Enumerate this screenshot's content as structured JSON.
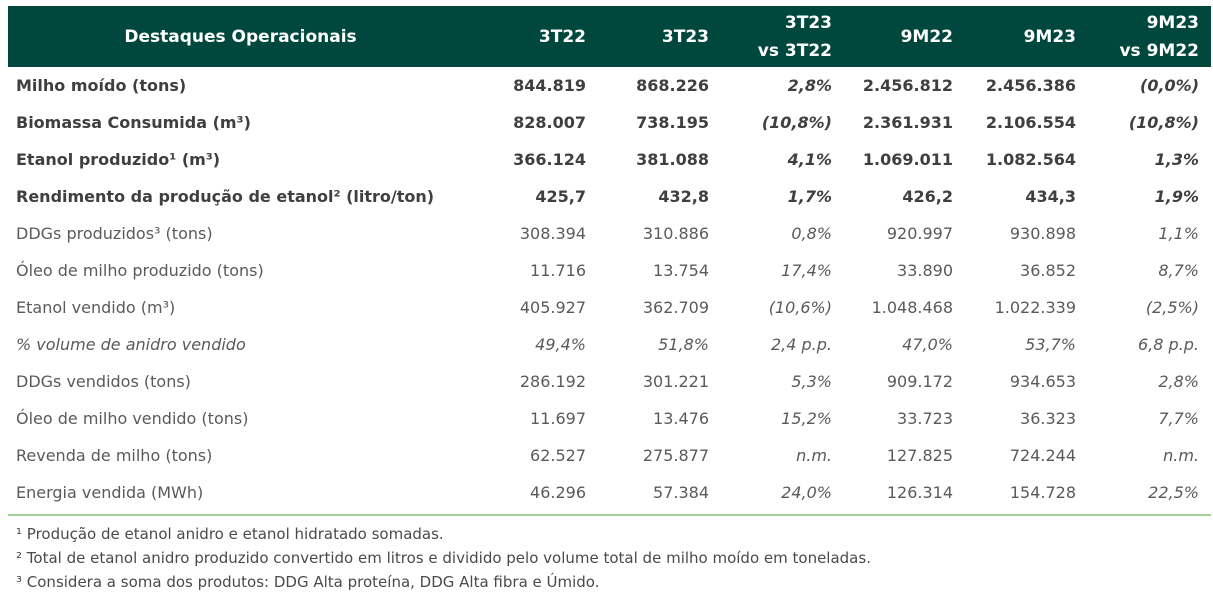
{
  "table": {
    "headers": [
      {
        "line1": "Destaques Operacionais",
        "line2": ""
      },
      {
        "line1": "3T22",
        "line2": ""
      },
      {
        "line1": "3T23",
        "line2": ""
      },
      {
        "line1": "3T23",
        "line2": "vs 3T22"
      },
      {
        "line1": "9M22",
        "line2": ""
      },
      {
        "line1": "9M23",
        "line2": ""
      },
      {
        "line1": "9M23",
        "line2": "vs 9M22"
      }
    ],
    "rows": [
      {
        "label": "Milho moído (tons)",
        "cells": [
          "844.819",
          "868.226",
          "2,8%",
          "2.456.812",
          "2.456.386",
          "(0,0%)"
        ]
      },
      {
        "label": "Biomassa Consumida (m³)",
        "cells": [
          "828.007",
          "738.195",
          "(10,8%)",
          "2.361.931",
          "2.106.554",
          "(10,8%)"
        ]
      },
      {
        "label": "Etanol produzido¹ (m³)",
        "cells": [
          "366.124",
          "381.088",
          "4,1%",
          "1.069.011",
          "1.082.564",
          "1,3%"
        ]
      },
      {
        "label": "Rendimento da produção de etanol² (litro/ton)",
        "cells": [
          "425,7",
          "432,8",
          "1,7%",
          "426,2",
          "434,3",
          "1,9%"
        ]
      },
      {
        "label": "DDGs produzidos³ (tons)",
        "cells": [
          "308.394",
          "310.886",
          "0,8%",
          "920.997",
          "930.898",
          "1,1%"
        ]
      },
      {
        "label": "Óleo de milho produzido (tons)",
        "cells": [
          "11.716",
          "13.754",
          "17,4%",
          "33.890",
          "36.852",
          "8,7%"
        ]
      },
      {
        "label": "Etanol vendido (m³)",
        "cells": [
          "405.927",
          "362.709",
          "(10,6%)",
          "1.048.468",
          "1.022.339",
          "(2,5%)"
        ]
      },
      {
        "label": "% volume de anidro vendido",
        "cells": [
          "49,4%",
          "51,8%",
          "2,4 p.p.",
          "47,0%",
          "53,7%",
          "6,8 p.p."
        ]
      },
      {
        "label": "DDGs vendidos (tons)",
        "cells": [
          "286.192",
          "301.221",
          "5,3%",
          "909.172",
          "934.653",
          "2,8%"
        ]
      },
      {
        "label": "Óleo de milho vendido (tons)",
        "cells": [
          "11.697",
          "13.476",
          "15,2%",
          "33.723",
          "36.323",
          "7,7%"
        ]
      },
      {
        "label": "Revenda de milho (tons)",
        "cells": [
          "62.527",
          "275.877",
          "n.m.",
          "127.825",
          "724.244",
          "n.m."
        ]
      },
      {
        "label": "Energia vendida (MWh)",
        "cells": [
          "46.296",
          "57.384",
          "24,0%",
          "126.314",
          "154.728",
          "22,5%"
        ]
      }
    ]
  },
  "footnotes": [
    "¹ Produção de etanol anidro e etanol hidratado somadas.",
    "² Total de etanol anidro produzido convertido em litros e dividido pelo volume total de milho moído em toneladas.",
    "³ Considera a soma dos produtos: DDG Alta proteína, DDG Alta fibra e Úmido."
  ],
  "colors": {
    "header_bg": "#00483d",
    "header_text": "#ffffff",
    "rule": "#a4cf95"
  }
}
